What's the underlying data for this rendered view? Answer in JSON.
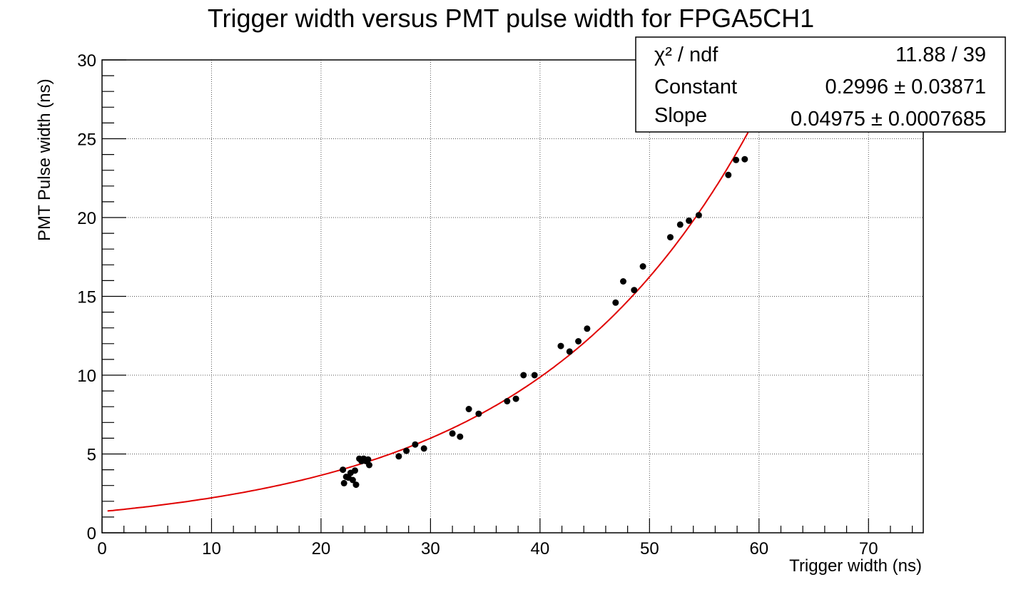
{
  "chart_data": {
    "type": "scatter",
    "title": "Trigger width versus PMT pulse width for FPGA5CH1",
    "xlabel": "Trigger width (ns)",
    "ylabel": "PMT Pulse width (ns)",
    "xlim": [
      0,
      75
    ],
    "ylim": [
      0,
      30
    ],
    "x_ticks": [
      "0",
      "10",
      "20",
      "30",
      "40",
      "50",
      "60",
      "70"
    ],
    "y_ticks": [
      "0",
      "5",
      "10",
      "15",
      "20",
      "25",
      "30"
    ],
    "grid": true,
    "colors": {
      "points": "#000000",
      "fit": "#e00000"
    },
    "points": [
      [
        22.0,
        4.0
      ],
      [
        22.1,
        3.15
      ],
      [
        22.3,
        3.55
      ],
      [
        22.5,
        3.5
      ],
      [
        22.7,
        3.8
      ],
      [
        22.9,
        3.35
      ],
      [
        23.1,
        3.95
      ],
      [
        23.2,
        3.05
      ],
      [
        23.5,
        4.7
      ],
      [
        23.7,
        4.55
      ],
      [
        23.9,
        4.7
      ],
      [
        24.1,
        4.55
      ],
      [
        24.3,
        4.65
      ],
      [
        24.4,
        4.3
      ],
      [
        27.1,
        4.85
      ],
      [
        27.8,
        5.2
      ],
      [
        28.6,
        5.6
      ],
      [
        29.4,
        5.35
      ],
      [
        32.0,
        6.3
      ],
      [
        32.7,
        6.1
      ],
      [
        33.5,
        7.85
      ],
      [
        34.4,
        7.55
      ],
      [
        37.0,
        8.35
      ],
      [
        37.8,
        8.5
      ],
      [
        38.5,
        10.0
      ],
      [
        39.5,
        10.0
      ],
      [
        41.9,
        11.85
      ],
      [
        42.7,
        11.5
      ],
      [
        43.5,
        12.15
      ],
      [
        44.3,
        12.95
      ],
      [
        46.9,
        14.6
      ],
      [
        47.6,
        15.95
      ],
      [
        48.6,
        15.4
      ],
      [
        49.4,
        16.9
      ],
      [
        51.9,
        18.75
      ],
      [
        52.8,
        19.55
      ],
      [
        53.6,
        19.8
      ],
      [
        54.5,
        20.15
      ],
      [
        57.2,
        22.7
      ],
      [
        57.9,
        23.65
      ],
      [
        58.7,
        23.7
      ]
    ],
    "fit": {
      "function": "exponential",
      "constant": 0.2996,
      "slope": 0.04975,
      "x_range": [
        0.5,
        59.0
      ]
    },
    "stats": {
      "rows": [
        {
          "label": "χ² / ndf",
          "value": "11.88 / 39"
        },
        {
          "label": "Constant",
          "value": "0.2996 ± 0.03871"
        },
        {
          "label": "Slope",
          "value": "0.04975 ± 0.0007685"
        }
      ],
      "placement": "top-right"
    }
  }
}
